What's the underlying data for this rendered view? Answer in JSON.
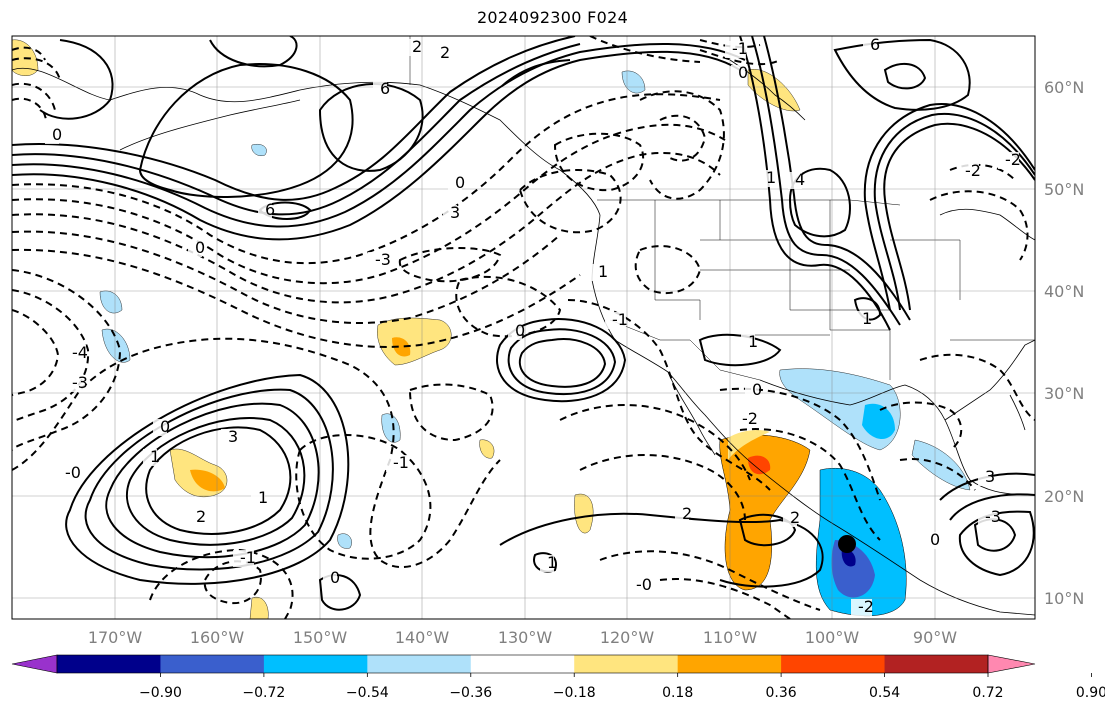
{
  "title": "2024092300 F024",
  "lon_labels": [
    "170°W",
    "160°W",
    "150°W",
    "140°W",
    "130°W",
    "120°W",
    "110°W",
    "100°W",
    "90°W"
  ],
  "lat_labels": [
    "60°N",
    "50°N",
    "40°N",
    "30°N",
    "20°N",
    "10°N"
  ],
  "colorbar": {
    "colors": [
      "#9932cc",
      "#00008b",
      "#3a5fcd",
      "#00bfff",
      "#afe1fa",
      "#ffffff",
      "#ffe57f",
      "#ffa500",
      "#ff4500",
      "#b22222",
      "#ff88b0"
    ],
    "tick_labels": [
      "−0.90",
      "−0.72",
      "−0.54",
      "−0.36",
      "−0.18",
      "0.18",
      "0.36",
      "0.54",
      "0.72",
      "0.90"
    ]
  },
  "contour_labels": [
    "2",
    "2",
    "6",
    "6",
    "0",
    "0",
    "-3",
    "3",
    "0",
    "6",
    "-1",
    "0",
    "4",
    "-2",
    "-2",
    "-4",
    "-3",
    "1",
    "0",
    "-1",
    "-0",
    "3",
    "2",
    "1",
    "-1",
    "1",
    "0",
    "2",
    "1",
    "0",
    "-0",
    "-1",
    "1",
    "1",
    "0",
    "-2",
    "2",
    "-2",
    "0",
    "-3",
    "3",
    "1"
  ],
  "marker": "storm-center"
}
